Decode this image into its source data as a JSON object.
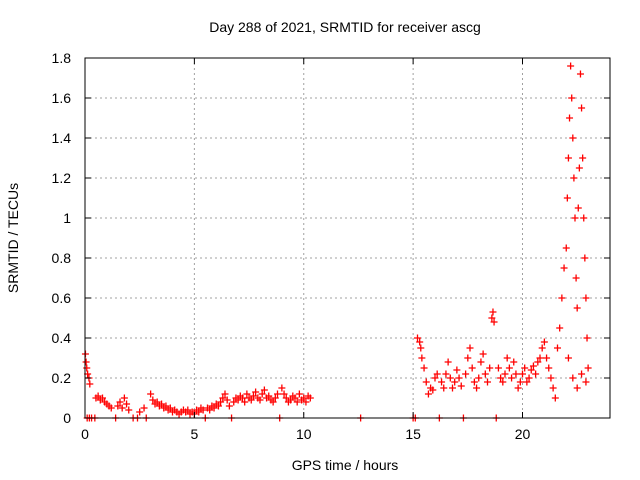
{
  "chart_data": {
    "type": "scatter",
    "title": "Day 288 of 2021, SRMTID for receiver ascg",
    "xlabel": "GPS time / hours",
    "ylabel": "SRMTID / TECUs",
    "xlim": [
      0,
      24
    ],
    "ylim": [
      0,
      1.8
    ],
    "xticks": [
      0,
      5,
      10,
      15,
      20
    ],
    "yticks": [
      0,
      0.2,
      0.4,
      0.6,
      0.8,
      1.0,
      1.2,
      1.4,
      1.6,
      1.8
    ],
    "ytick_labels": [
      "0",
      "0.2",
      "0.4",
      "0.6",
      "0.8",
      "1",
      "1.2",
      "1.4",
      "1.6",
      "1.8"
    ],
    "grid": true,
    "marker": "+",
    "series": [
      {
        "name": "SRMTID",
        "color": "#ff0000",
        "points": [
          [
            0.02,
            0.32
          ],
          [
            0.05,
            0.28
          ],
          [
            0.08,
            0.25
          ],
          [
            0.12,
            0.22
          ],
          [
            0.18,
            0.2
          ],
          [
            0.22,
            0.17
          ],
          [
            0.1,
            0.0
          ],
          [
            0.2,
            0.0
          ],
          [
            0.3,
            0.0
          ],
          [
            0.45,
            0.0
          ],
          [
            0.5,
            0.1
          ],
          [
            0.6,
            0.11
          ],
          [
            0.7,
            0.09
          ],
          [
            0.8,
            0.1
          ],
          [
            0.9,
            0.08
          ],
          [
            1.0,
            0.07
          ],
          [
            1.1,
            0.06
          ],
          [
            1.2,
            0.05
          ],
          [
            1.4,
            0.0
          ],
          [
            1.5,
            0.06
          ],
          [
            1.6,
            0.08
          ],
          [
            1.7,
            0.05
          ],
          [
            1.8,
            0.1
          ],
          [
            1.9,
            0.07
          ],
          [
            2.0,
            0.04
          ],
          [
            2.2,
            0.0
          ],
          [
            2.4,
            0.0
          ],
          [
            2.5,
            0.03
          ],
          [
            2.7,
            0.05
          ],
          [
            2.8,
            0.0
          ],
          [
            3.0,
            0.12
          ],
          [
            3.1,
            0.09
          ],
          [
            3.2,
            0.07
          ],
          [
            3.3,
            0.08
          ],
          [
            3.4,
            0.06
          ],
          [
            3.5,
            0.07
          ],
          [
            3.6,
            0.05
          ],
          [
            3.7,
            0.06
          ],
          [
            3.8,
            0.04
          ],
          [
            3.9,
            0.05
          ],
          [
            4.0,
            0.03
          ],
          [
            4.1,
            0.04
          ],
          [
            4.2,
            0.03
          ],
          [
            4.3,
            0.02
          ],
          [
            4.4,
            0.03
          ],
          [
            4.5,
            0.04
          ],
          [
            4.6,
            0.03
          ],
          [
            4.7,
            0.04
          ],
          [
            4.8,
            0.02
          ],
          [
            4.9,
            0.03
          ],
          [
            5.0,
            0.02
          ],
          [
            5.1,
            0.04
          ],
          [
            5.2,
            0.03
          ],
          [
            5.3,
            0.05
          ],
          [
            5.4,
            0.04
          ],
          [
            5.5,
            0.0
          ],
          [
            5.6,
            0.05
          ],
          [
            5.7,
            0.04
          ],
          [
            5.8,
            0.06
          ],
          [
            5.9,
            0.05
          ],
          [
            6.0,
            0.07
          ],
          [
            6.1,
            0.06
          ],
          [
            6.2,
            0.08
          ],
          [
            6.3,
            0.1
          ],
          [
            6.4,
            0.12
          ],
          [
            6.5,
            0.09
          ],
          [
            6.6,
            0.06
          ],
          [
            6.7,
            0.0
          ],
          [
            6.8,
            0.08
          ],
          [
            6.9,
            0.1
          ],
          [
            7.0,
            0.09
          ],
          [
            7.1,
            0.11
          ],
          [
            7.2,
            0.1
          ],
          [
            7.3,
            0.08
          ],
          [
            7.4,
            0.12
          ],
          [
            7.5,
            0.1
          ],
          [
            7.6,
            0.09
          ],
          [
            7.7,
            0.11
          ],
          [
            7.8,
            0.13
          ],
          [
            7.9,
            0.1
          ],
          [
            8.0,
            0.09
          ],
          [
            8.1,
            0.12
          ],
          [
            8.2,
            0.14
          ],
          [
            8.3,
            0.1
          ],
          [
            8.4,
            0.11
          ],
          [
            8.5,
            0.09
          ],
          [
            8.6,
            0.08
          ],
          [
            8.7,
            0.1
          ],
          [
            8.8,
            0.12
          ],
          [
            8.9,
            0.0
          ],
          [
            9.0,
            0.15
          ],
          [
            9.1,
            0.12
          ],
          [
            9.2,
            0.1
          ],
          [
            9.3,
            0.08
          ],
          [
            9.4,
            0.09
          ],
          [
            9.5,
            0.11
          ],
          [
            9.6,
            0.1
          ],
          [
            9.7,
            0.08
          ],
          [
            9.8,
            0.12
          ],
          [
            9.9,
            0.09
          ],
          [
            10.0,
            0.1
          ],
          [
            10.1,
            0.08
          ],
          [
            10.2,
            0.11
          ],
          [
            10.3,
            0.1
          ],
          [
            12.6,
            0.0
          ],
          [
            15.0,
            0.0
          ],
          [
            15.1,
            0.0
          ],
          [
            15.2,
            0.4
          ],
          [
            15.3,
            0.38
          ],
          [
            15.35,
            0.35
          ],
          [
            15.4,
            0.3
          ],
          [
            15.5,
            0.25
          ],
          [
            15.6,
            0.18
          ],
          [
            15.7,
            0.12
          ],
          [
            15.8,
            0.15
          ],
          [
            15.9,
            0.14
          ],
          [
            16.0,
            0.2
          ],
          [
            16.1,
            0.22
          ],
          [
            16.2,
            0.0
          ],
          [
            16.3,
            0.18
          ],
          [
            16.4,
            0.15
          ],
          [
            16.5,
            0.22
          ],
          [
            16.6,
            0.28
          ],
          [
            16.7,
            0.2
          ],
          [
            16.8,
            0.15
          ],
          [
            16.9,
            0.18
          ],
          [
            17.0,
            0.24
          ],
          [
            17.1,
            0.2
          ],
          [
            17.2,
            0.16
          ],
          [
            17.3,
            0.0
          ],
          [
            17.4,
            0.22
          ],
          [
            17.5,
            0.3
          ],
          [
            17.6,
            0.35
          ],
          [
            17.7,
            0.25
          ],
          [
            17.8,
            0.18
          ],
          [
            17.9,
            0.15
          ],
          [
            18.0,
            0.2
          ],
          [
            18.1,
            0.28
          ],
          [
            18.2,
            0.32
          ],
          [
            18.3,
            0.22
          ],
          [
            18.4,
            0.18
          ],
          [
            18.5,
            0.25
          ],
          [
            18.6,
            0.5
          ],
          [
            18.65,
            0.53
          ],
          [
            18.7,
            0.48
          ],
          [
            18.8,
            0.0
          ],
          [
            18.9,
            0.25
          ],
          [
            19.0,
            0.2
          ],
          [
            19.1,
            0.18
          ],
          [
            19.2,
            0.22
          ],
          [
            19.3,
            0.3
          ],
          [
            19.4,
            0.25
          ],
          [
            19.5,
            0.2
          ],
          [
            19.6,
            0.28
          ],
          [
            19.7,
            0.22
          ],
          [
            19.8,
            0.15
          ],
          [
            19.9,
            0.18
          ],
          [
            20.0,
            0.22
          ],
          [
            20.1,
            0.25
          ],
          [
            20.2,
            0.18
          ],
          [
            20.3,
            0.2
          ],
          [
            20.4,
            0.24
          ],
          [
            20.5,
            0.26
          ],
          [
            20.6,
            0.22
          ],
          [
            20.7,
            0.28
          ],
          [
            20.8,
            0.3
          ],
          [
            20.9,
            0.35
          ],
          [
            21.0,
            0.38
          ],
          [
            21.1,
            0.3
          ],
          [
            21.2,
            0.25
          ],
          [
            21.3,
            0.2
          ],
          [
            21.4,
            0.15
          ],
          [
            21.5,
            0.1
          ],
          [
            21.6,
            0.35
          ],
          [
            21.7,
            0.45
          ],
          [
            21.8,
            0.6
          ],
          [
            21.9,
            0.75
          ],
          [
            22.0,
            0.85
          ],
          [
            22.05,
            1.1
          ],
          [
            22.1,
            1.3
          ],
          [
            22.15,
            1.5
          ],
          [
            22.2,
            1.76
          ],
          [
            22.25,
            1.6
          ],
          [
            22.3,
            1.4
          ],
          [
            22.35,
            1.2
          ],
          [
            22.4,
            1.0
          ],
          [
            22.45,
            0.7
          ],
          [
            22.5,
            0.55
          ],
          [
            22.55,
            1.05
          ],
          [
            22.6,
            1.25
          ],
          [
            22.65,
            1.72
          ],
          [
            22.7,
            1.55
          ],
          [
            22.75,
            1.3
          ],
          [
            22.8,
            1.0
          ],
          [
            22.85,
            0.8
          ],
          [
            22.9,
            0.6
          ],
          [
            22.95,
            0.4
          ],
          [
            23.0,
            0.25
          ],
          [
            22.1,
            0.3
          ],
          [
            22.3,
            0.2
          ],
          [
            22.5,
            0.15
          ],
          [
            22.7,
            0.22
          ],
          [
            22.9,
            0.18
          ]
        ]
      }
    ]
  }
}
